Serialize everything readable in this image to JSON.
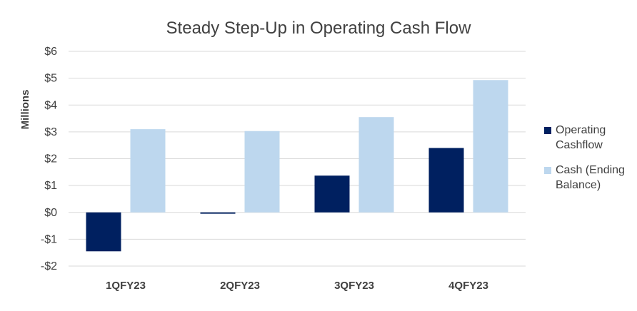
{
  "chart_data": {
    "type": "bar",
    "title": "Steady Step-Up in Operating Cash Flow",
    "ylabel": "Millions",
    "xlabel": "",
    "categories": [
      "1QFY23",
      "2QFY23",
      "3QFY23",
      "4QFY23"
    ],
    "series": [
      {
        "name": "Operating Cashflow",
        "color": "#002060",
        "values": [
          -1.45,
          -0.05,
          1.37,
          2.4
        ]
      },
      {
        "name": "Cash (Ending Balance)",
        "color": "#BDD7EE",
        "values": [
          3.1,
          3.03,
          3.55,
          4.93
        ]
      }
    ],
    "ylim": [
      -2,
      6
    ],
    "yticks": [
      -2,
      -1,
      0,
      1,
      2,
      3,
      4,
      5,
      6
    ],
    "ytick_labels": [
      "-$2",
      "-$1",
      "$0",
      "$1",
      "$2",
      "$3",
      "$4",
      "$5",
      "$6"
    ],
    "grid": true,
    "legend_position": "right"
  }
}
